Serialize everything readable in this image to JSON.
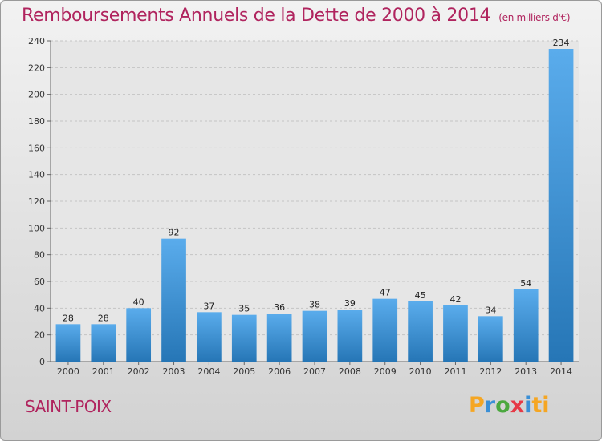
{
  "title": "Remboursements Annuels de la Dette de 2000 à 2014",
  "unit": "(en milliers d'€)",
  "commune": "SAINT-POIX",
  "logo_text": "Proxiti",
  "colors": {
    "title": "#b0245e",
    "bar_top": "#5aacec",
    "bar_bottom": "#2676b6"
  },
  "chart_data": {
    "type": "bar",
    "title": "Remboursements Annuels de la Dette de 2000 à 2014",
    "subtitle": "(en milliers d'€)",
    "categories": [
      "2000",
      "2001",
      "2002",
      "2003",
      "2004",
      "2005",
      "2006",
      "2007",
      "2008",
      "2009",
      "2010",
      "2011",
      "2012",
      "2013",
      "2014"
    ],
    "values": [
      28,
      28,
      40,
      92,
      37,
      35,
      36,
      38,
      39,
      47,
      45,
      42,
      34,
      54,
      234
    ],
    "ylim": [
      0,
      240
    ],
    "yticks": [
      0,
      20,
      40,
      60,
      80,
      100,
      120,
      140,
      160,
      180,
      200,
      220,
      240
    ],
    "grid": true,
    "legend": "none"
  }
}
